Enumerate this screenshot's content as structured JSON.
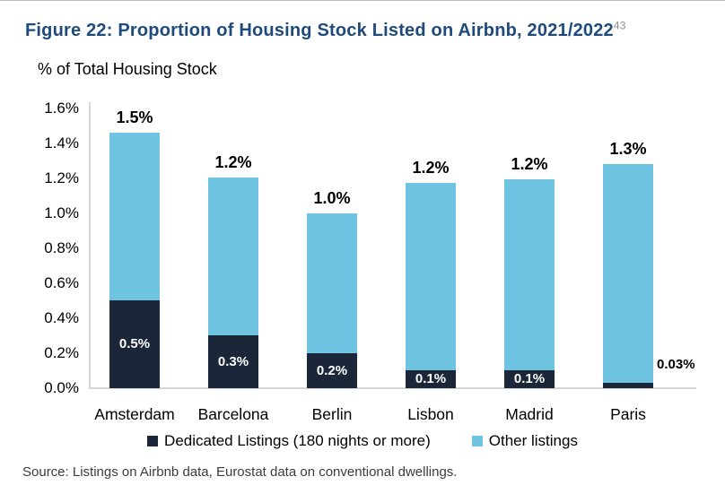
{
  "title": {
    "text": "Figure 22: Proportion of Housing Stock Listed on Airbnb, 2021/2022",
    "superscript": "43"
  },
  "subtitle": "% of Total Housing Stock",
  "source": "Source: Listings on Airbnb data, Eurostat data on conventional dwellings.",
  "legend": [
    {
      "label": "Dedicated Listings (180 nights or more)",
      "color": "#1B2638"
    },
    {
      "label": "Other listings",
      "color": "#6FC4E2"
    }
  ],
  "colors": {
    "title": "#1F4B7C",
    "dedicated_bar": "#1B2638",
    "other_bar": "#6FC4E2",
    "axis_line": "#D6D6D6",
    "inside_label": "#FFFFFF",
    "text": "#000000",
    "superscript": "#8C8C8C",
    "source_text": "#3C3C3C"
  },
  "chart_data": {
    "type": "bar",
    "stacked": true,
    "title": "Figure 22: Proportion of Housing Stock Listed on Airbnb, 2021/2022",
    "ylabel": "% of Total Housing Stock",
    "categories": [
      "Amsterdam",
      "Barcelona",
      "Berlin",
      "Lisbon",
      "Madrid",
      "Paris"
    ],
    "series": [
      {
        "name": "Dedicated Listings (180 nights or more)",
        "values": [
          0.5,
          0.3,
          0.2,
          0.1,
          0.1,
          0.03
        ]
      },
      {
        "name": "Other listings",
        "values": [
          0.96,
          0.9,
          0.8,
          1.07,
          1.09,
          1.25
        ]
      }
    ],
    "totals": [
      1.46,
      1.2,
      1.0,
      1.17,
      1.19,
      1.28
    ],
    "total_labels": [
      "1.5%",
      "1.2%",
      "1.0%",
      "1.2%",
      "1.2%",
      "1.3%"
    ],
    "dedicated_labels": [
      "0.5%",
      "0.3%",
      "0.2%",
      "0.1%",
      "0.1%",
      "0.03%"
    ],
    "dedicated_label_outside": [
      false,
      false,
      false,
      false,
      false,
      true
    ],
    "yticks": [
      "0.0%",
      "0.2%",
      "0.4%",
      "0.6%",
      "0.8%",
      "1.0%",
      "1.2%",
      "1.4%",
      "1.6%"
    ],
    "ylim": [
      0,
      1.6
    ],
    "grid": false,
    "legend_position": "bottom"
  }
}
